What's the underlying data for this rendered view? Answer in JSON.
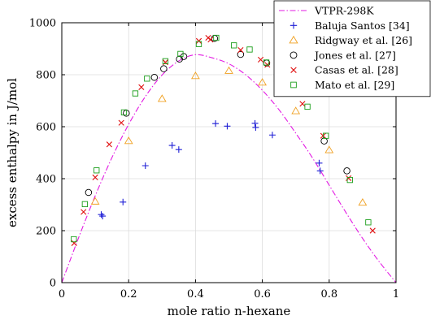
{
  "chart_data": {
    "type": "scatter",
    "title": "",
    "xlabel": "mole ratio n-hexane",
    "ylabel": "excess enthalpy in J/mol",
    "xlim": [
      0,
      1
    ],
    "ylim": [
      0,
      1000
    ],
    "xticks": [
      "0",
      "0.2",
      "0.4",
      "0.6",
      "0.8",
      "1"
    ],
    "yticks": [
      "0",
      "200",
      "400",
      "600",
      "800",
      "1000"
    ],
    "grid": true,
    "legend_position": "top-right",
    "series": [
      {
        "name": "VTPR-298K",
        "kind": "line",
        "style": "dash-dot",
        "color": "#e31ae3",
        "x": [
          0,
          0.05,
          0.1,
          0.15,
          0.2,
          0.25,
          0.3,
          0.35,
          0.4,
          0.45,
          0.5,
          0.55,
          0.6,
          0.65,
          0.7,
          0.75,
          0.8,
          0.85,
          0.9,
          0.95,
          1
        ],
        "y": [
          0,
          172,
          334,
          481,
          609,
          716,
          799,
          853,
          877,
          865,
          842,
          800,
          740,
          665,
          575,
          480,
          375,
          270,
          170,
          80,
          0
        ]
      },
      {
        "name": "Baluja Santos [34]",
        "kind": "scatter",
        "marker": "plus",
        "color": "#1f1fd6",
        "x": [
          0.118,
          0.122,
          0.183,
          0.25,
          0.33,
          0.35,
          0.46,
          0.495,
          0.578,
          0.58,
          0.63,
          0.77,
          0.773
        ],
        "y": [
          262,
          256,
          310,
          450,
          528,
          512,
          612,
          602,
          613,
          597,
          568,
          460,
          430
        ]
      },
      {
        "name": "Ridgway et al. [26]",
        "kind": "scatter",
        "marker": "triangle",
        "color": "#f0a020",
        "x": [
          0.1,
          0.2,
          0.3,
          0.4,
          0.5,
          0.6,
          0.7,
          0.8,
          0.9
        ],
        "y": [
          312,
          545,
          707,
          795,
          815,
          770,
          660,
          510,
          308
        ]
      },
      {
        "name": "Jones et al. [27]",
        "kind": "scatter",
        "marker": "circle",
        "color": "#000000",
        "x": [
          0.08,
          0.193,
          0.277,
          0.305,
          0.352,
          0.365,
          0.457,
          0.535,
          0.613,
          0.645,
          0.785,
          0.853
        ],
        "y": [
          347,
          652,
          790,
          823,
          860,
          870,
          940,
          878,
          845,
          775,
          545,
          430
        ]
      },
      {
        "name": "Casas et al. [28]",
        "kind": "scatter",
        "marker": "x",
        "color": "#e01010",
        "x": [
          0.037,
          0.065,
          0.1,
          0.142,
          0.178,
          0.238,
          0.31,
          0.41,
          0.438,
          0.445,
          0.535,
          0.595,
          0.615,
          0.657,
          0.72,
          0.782,
          0.858,
          0.93
        ],
        "y": [
          152,
          272,
          405,
          532,
          615,
          752,
          848,
          930,
          942,
          935,
          895,
          858,
          838,
          785,
          688,
          565,
          402,
          200
        ]
      },
      {
        "name": "Mato et al. [29]",
        "kind": "scatter",
        "marker": "square",
        "color": "#1a9e1a",
        "x": [
          0.036,
          0.069,
          0.104,
          0.186,
          0.22,
          0.255,
          0.31,
          0.355,
          0.41,
          0.462,
          0.515,
          0.562,
          0.612,
          0.69,
          0.735,
          0.79,
          0.862,
          0.917
        ],
        "y": [
          167,
          302,
          432,
          655,
          728,
          785,
          852,
          880,
          918,
          942,
          913,
          897,
          847,
          758,
          677,
          565,
          395,
          232
        ]
      }
    ]
  }
}
